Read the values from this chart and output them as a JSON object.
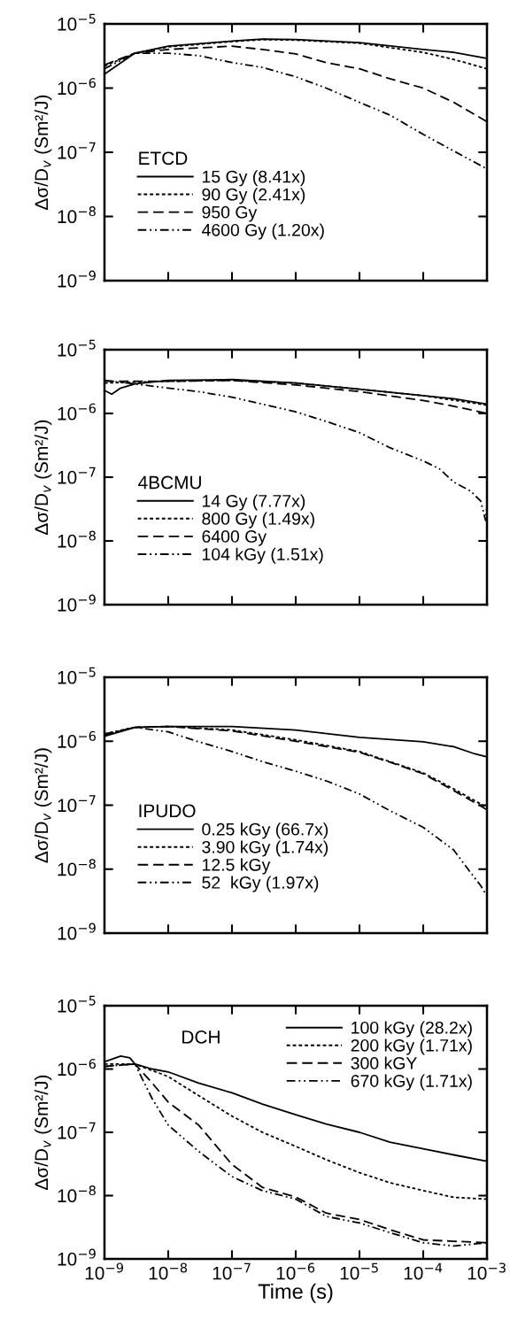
{
  "chart_data": [
    {
      "type": "line",
      "legend_title": "ETCD",
      "ylabel": "Δσ/D$_{v}$ (Sm²/J)",
      "log": "xy",
      "legend": "bottom left",
      "tick_labels": "y",
      "grid": false,
      "xlim": [
        1e-09,
        0.001
      ],
      "xticks": [
        {
          "value": 1e-09,
          "label": null
        },
        {
          "value": 1e-08,
          "label": null
        },
        {
          "value": 1e-07,
          "label": null
        },
        {
          "value": 1e-06,
          "label": null
        },
        {
          "value": 1e-05,
          "label": null
        },
        {
          "value": 0.0001,
          "label": null
        },
        {
          "value": 0.001,
          "label": null
        }
      ],
      "ylim": [
        1e-09,
        1e-05
      ],
      "yticks": [
        {
          "value": 1e-09,
          "label": "10$^{−9}$"
        },
        {
          "value": 1e-08,
          "label": "10$^{−8}$"
        },
        {
          "value": 1e-07,
          "label": "10$^{−7}$"
        },
        {
          "value": 1e-06,
          "label": "10$^{−6}$"
        },
        {
          "value": 1e-05,
          "label": "10$^{−5}$"
        }
      ],
      "series": [
        {
          "name": "15 Gy (8.41x)",
          "color": "#000000",
          "line_style": "solid",
          "x": [
            1e-09,
            3e-09,
            1e-08,
            1e-07,
            3e-07,
            1e-06,
            1e-05,
            0.0001,
            0.0003,
            0.001
          ],
          "values": [
            1.65e-06,
            3.5e-06,
            4.5e-06,
            5.4e-06,
            5.8e-06,
            5.7e-06,
            5.1e-06,
            4e-06,
            3.6e-06,
            2.9e-06
          ]
        },
        {
          "name": "90 Gy (2.41x)",
          "color": "#000000",
          "line_style": "dotted",
          "x": [
            1e-09,
            3e-09,
            1e-08,
            1e-07,
            3e-07,
            1e-06,
            1e-05,
            0.0001,
            0.0003,
            0.001
          ],
          "values": [
            2.2e-06,
            3.5e-06,
            4.4e-06,
            5.3e-06,
            5.7e-06,
            5.6e-06,
            5e-06,
            3.6e-06,
            2.8e-06,
            2e-06
          ]
        },
        {
          "name": "950 Gy",
          "color": "#000000",
          "line_style": "dashed",
          "x": [
            1e-09,
            3e-09,
            1e-08,
            1e-07,
            3e-07,
            1e-06,
            3e-06,
            1e-05,
            3e-05,
            0.0001,
            0.0003,
            0.001
          ],
          "values": [
            2.3e-06,
            3.5e-06,
            4e-06,
            4.5e-06,
            4e-06,
            3.4e-06,
            2.5e-06,
            2e-06,
            1.4e-06,
            1e-06,
            6e-07,
            3e-07
          ]
        },
        {
          "name": "4600 Gy (1.20x)",
          "color": "#000000",
          "line_style": "dashdot",
          "x": [
            1e-09,
            3e-09,
            1e-08,
            3e-08,
            1e-07,
            3e-07,
            1e-06,
            3e-06,
            1e-05,
            3e-05,
            0.0001,
            0.0003,
            0.001
          ],
          "values": [
            2e-06,
            3.5e-06,
            3.5e-06,
            3.2e-06,
            2.5e-06,
            2.1e-06,
            1.5e-06,
            1e-06,
            6e-07,
            3.8e-07,
            1.9e-07,
            1.05e-07,
            5.5e-08
          ]
        }
      ]
    },
    {
      "type": "line",
      "legend_title": "4BCMU",
      "ylabel": "Δσ/D$_{v}$ (Sm²/J)",
      "log": "xy",
      "legend": "bottom left",
      "tick_labels": "y",
      "grid": false,
      "xlim": [
        1e-09,
        0.001
      ],
      "xticks": [
        {
          "value": 1e-09,
          "label": null
        },
        {
          "value": 1e-08,
          "label": null
        },
        {
          "value": 1e-07,
          "label": null
        },
        {
          "value": 1e-06,
          "label": null
        },
        {
          "value": 1e-05,
          "label": null
        },
        {
          "value": 0.0001,
          "label": null
        },
        {
          "value": 0.001,
          "label": null
        }
      ],
      "ylim": [
        1e-09,
        1e-05
      ],
      "yticks": [
        {
          "value": 1e-09,
          "label": "10$^{−9}$"
        },
        {
          "value": 1e-08,
          "label": "10$^{−8}$"
        },
        {
          "value": 1e-07,
          "label": "10$^{−7}$"
        },
        {
          "value": 1e-06,
          "label": "10$^{−6}$"
        },
        {
          "value": 1e-05,
          "label": "10$^{−5}$"
        }
      ],
      "series": [
        {
          "name": "14 Gy (7.77x)",
          "color": "#000000",
          "line_style": "solid",
          "x": [
            1e-09,
            1.3e-09,
            1.8e-09,
            3e-09,
            1e-08,
            1e-07,
            1e-06,
            1e-05,
            0.0001,
            0.0003,
            0.001
          ],
          "values": [
            2.3e-06,
            2e-06,
            2.5e-06,
            2.9e-06,
            3.3e-06,
            3.4e-06,
            3e-06,
            2.4e-06,
            1.9e-06,
            1.7e-06,
            1.4e-06
          ]
        },
        {
          "name": "800 Gy (1.49x)",
          "color": "#000000",
          "line_style": "dotted",
          "x": [
            1e-09,
            1e-08,
            1e-07,
            1e-06,
            1e-05,
            0.0001,
            0.001
          ],
          "values": [
            3e-06,
            3.2e-06,
            3.3e-06,
            3e-06,
            2.4e-06,
            1.9e-06,
            1.35e-06
          ]
        },
        {
          "name": "6400 Gy",
          "color": "#000000",
          "line_style": "dashed",
          "x": [
            1e-09,
            1e-08,
            1e-07,
            1e-06,
            1e-05,
            0.0001,
            0.0003,
            0.001
          ],
          "values": [
            3.2e-06,
            3.2e-06,
            3.3e-06,
            2.8e-06,
            2.2e-06,
            1.6e-06,
            1.3e-06,
            1e-06
          ]
        },
        {
          "name": "104 kGy (1.51x)",
          "color": "#000000",
          "line_style": "dashdot",
          "x": [
            1e-09,
            3e-09,
            1e-08,
            3e-08,
            1e-07,
            3e-07,
            1e-06,
            3e-06,
            1e-05,
            3e-05,
            0.0001,
            0.00018,
            0.0003,
            0.00056,
            0.0008,
            0.00095,
            0.001
          ],
          "values": [
            3.3e-06,
            2.9e-06,
            2.5e-06,
            2.2e-06,
            1.8e-06,
            1.4e-06,
            1.06e-06,
            7.5e-07,
            5e-07,
            2.9e-07,
            1.8e-07,
            1.35e-07,
            8.4e-08,
            6e-08,
            4.2e-08,
            2.1e-08,
            3.5e-08
          ]
        }
      ]
    },
    {
      "type": "line",
      "legend_title": "IPUDO",
      "ylabel": "Δσ/D$_{v}$ (Sm²/J)",
      "log": "xy",
      "legend": "bottom left",
      "tick_labels": "y",
      "grid": false,
      "xlim": [
        1e-09,
        0.001
      ],
      "xticks": [
        {
          "value": 1e-09,
          "label": null
        },
        {
          "value": 1e-08,
          "label": null
        },
        {
          "value": 1e-07,
          "label": null
        },
        {
          "value": 1e-06,
          "label": null
        },
        {
          "value": 1e-05,
          "label": null
        },
        {
          "value": 0.0001,
          "label": null
        },
        {
          "value": 0.001,
          "label": null
        }
      ],
      "ylim": [
        1e-09,
        1e-05
      ],
      "yticks": [
        {
          "value": 1e-09,
          "label": "10$^{−9}$"
        },
        {
          "value": 1e-08,
          "label": "10$^{−8}$"
        },
        {
          "value": 1e-07,
          "label": "10$^{−7}$"
        },
        {
          "value": 1e-06,
          "label": "10$^{−6}$"
        },
        {
          "value": 1e-05,
          "label": "10$^{−5}$"
        }
      ],
      "series": [
        {
          "name": "0.25 kGy (66.7x)",
          "color": "#000000",
          "line_style": "solid",
          "x": [
            1e-09,
            3e-09,
            1e-08,
            1e-07,
            1e-06,
            1e-05,
            0.0001,
            0.0003,
            0.0006,
            0.001
          ],
          "values": [
            1.2e-06,
            1.65e-06,
            1.7e-06,
            1.7e-06,
            1.5e-06,
            1.15e-06,
            9.8e-07,
            8.2e-07,
            6.5e-07,
            5.7e-07
          ]
        },
        {
          "name": "3.90 kGy (1.74x)",
          "color": "#000000",
          "line_style": "dotted",
          "x": [
            1e-09,
            3e-09,
            1e-08,
            1e-07,
            1e-06,
            1e-05,
            3e-05,
            0.0001,
            0.0003,
            0.001
          ],
          "values": [
            1.3e-06,
            1.65e-06,
            1.7e-06,
            1.5e-06,
            1.05e-06,
            6.9e-07,
            4.8e-07,
            3.2e-07,
            1.8e-07,
            9.2e-08
          ]
        },
        {
          "name": "12.5 kGy",
          "color": "#000000",
          "line_style": "dashed",
          "x": [
            1e-09,
            3e-09,
            1e-08,
            1e-07,
            1e-06,
            1e-05,
            3e-05,
            0.0001,
            0.0003,
            0.001
          ],
          "values": [
            1.25e-06,
            1.65e-06,
            1.7e-06,
            1.45e-06,
            1e-06,
            6.7e-07,
            4.7e-07,
            3.1e-07,
            1.7e-07,
            8.5e-08
          ]
        },
        {
          "name": "52  kGy (1.97x)",
          "color": "#000000",
          "line_style": "dashdot",
          "x": [
            1e-09,
            3e-09,
            1e-08,
            3e-08,
            1e-07,
            3e-07,
            1e-06,
            3e-06,
            1e-05,
            3e-05,
            0.0001,
            0.0003,
            0.00056,
            0.0008,
            0.001
          ],
          "values": [
            1.3e-06,
            1.65e-06,
            1.4e-06,
            9.8e-07,
            6.9e-07,
            4.8e-07,
            3.4e-07,
            2.4e-07,
            1.5e-07,
            8.2e-08,
            4.5e-08,
            2e-08,
            8.7e-09,
            5.5e-09,
            3.8e-09
          ]
        }
      ]
    },
    {
      "type": "line",
      "annotations": [
        "DCH"
      ],
      "ylabel": "Δσ/D$_{v}$ (Sm²/J)",
      "xlabel": "Time (s)",
      "log": "xy",
      "legend": "top right",
      "grid": false,
      "xlim": [
        1e-09,
        0.001
      ],
      "xticks": [
        {
          "value": 1e-09,
          "label": "10$^{−9}$"
        },
        {
          "value": 1e-08,
          "label": "10$^{−8}$"
        },
        {
          "value": 1e-07,
          "label": "10$^{−7}$"
        },
        {
          "value": 1e-06,
          "label": "10$^{−6}$"
        },
        {
          "value": 1e-05,
          "label": "10$^{−5}$"
        },
        {
          "value": 0.0001,
          "label": "10$^{−4}$"
        },
        {
          "value": 0.001,
          "label": "10$^{−3}$"
        }
      ],
      "ylim": [
        1e-09,
        1e-05
      ],
      "yticks": [
        {
          "value": 1e-09,
          "label": "10$^{−9}$"
        },
        {
          "value": 1e-08,
          "label": "10$^{−8}$"
        },
        {
          "value": 1e-07,
          "label": "10$^{−7}$"
        },
        {
          "value": 1e-06,
          "label": "10$^{−6}$"
        },
        {
          "value": 1e-05,
          "label": "10$^{−5}$"
        }
      ],
      "series": [
        {
          "name": "100 kGy (28.2x)",
          "color": "#000000",
          "line_style": "solid",
          "x": [
            1e-09,
            1.8e-09,
            2.5e-09,
            3e-09,
            5.6e-09,
            1e-08,
            3e-08,
            1e-07,
            3e-07,
            1e-06,
            3e-06,
            1e-05,
            3e-05,
            0.0001,
            0.0003,
            0.001
          ],
          "values": [
            1.3e-06,
            1.6e-06,
            1.5e-06,
            1.2e-06,
            1e-06,
            9e-07,
            6e-07,
            4.2e-07,
            2.8e-07,
            1.9e-07,
            1.35e-07,
            1e-07,
            7e-08,
            5.5e-08,
            4.4e-08,
            3.5e-08
          ]
        },
        {
          "name": "200 kGy (1.71x)",
          "color": "#000000",
          "line_style": "dotted",
          "x": [
            1e-09,
            3e-09,
            1e-08,
            3e-08,
            1e-07,
            3e-07,
            1e-06,
            3e-06,
            1e-05,
            3e-05,
            0.0001,
            0.0003,
            0.001
          ],
          "values": [
            1.2e-06,
            1.2e-06,
            7.6e-07,
            3.8e-07,
            1.8e-07,
            1e-07,
            6e-08,
            3.7e-08,
            2.3e-08,
            1.6e-08,
            1.2e-08,
            9.4e-09,
            8.8e-09
          ]
        },
        {
          "name": "300 kGY",
          "color": "#000000",
          "line_style": "dashed",
          "x": [
            1e-09,
            3e-09,
            5.6e-09,
            1e-08,
            3e-08,
            1e-07,
            3e-07,
            1e-06,
            3e-06,
            1e-05,
            3e-05,
            0.0001,
            0.0003,
            0.001
          ],
          "values": [
            1.1e-06,
            1.2e-06,
            6e-07,
            3e-07,
            1.3e-07,
            3.1e-08,
            1.35e-08,
            9.5e-09,
            5.3e-09,
            4.2e-09,
            2.9e-09,
            2e-09,
            1.9e-09,
            1.8e-09
          ]
        },
        {
          "name": "670 kGy (1.71x)",
          "color": "#000000",
          "line_style": "dashdot",
          "x": [
            1e-09,
            3e-09,
            5.6e-09,
            1e-08,
            3e-08,
            5.6e-08,
            1e-07,
            3e-07,
            1e-06,
            3e-06,
            1e-05,
            3e-05,
            0.0001,
            0.0003,
            0.001
          ],
          "values": [
            1.1e-06,
            1.2e-06,
            3.4e-07,
            1.3e-07,
            5e-08,
            3.1e-08,
            2e-08,
            1.2e-08,
            8.8e-09,
            4.7e-09,
            3.7e-09,
            2.6e-09,
            1.8e-09,
            1.6e-09,
            1.8e-09
          ]
        }
      ]
    }
  ]
}
